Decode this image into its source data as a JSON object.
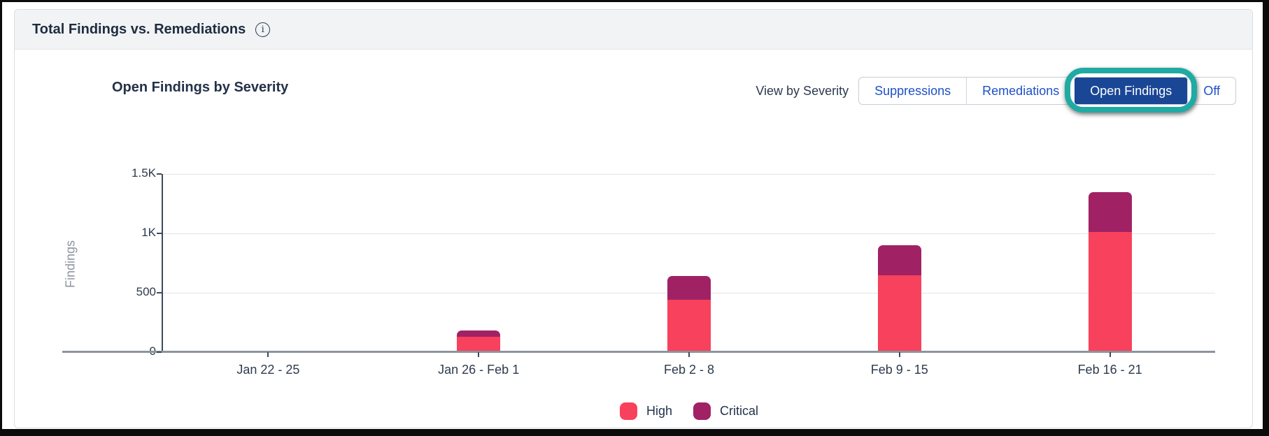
{
  "card": {
    "title": "Total Findings vs. Remediations",
    "info_icon_glyph": "i"
  },
  "panel": {
    "title": "Open Findings by Severity"
  },
  "controls": {
    "view_by_label": "View by Severity",
    "buttons": [
      {
        "label": "Suppressions",
        "selected": false,
        "highlighted": false
      },
      {
        "label": "Remediations",
        "selected": false,
        "highlighted": false
      },
      {
        "label": "Open Findings",
        "selected": true,
        "highlighted": true
      },
      {
        "label": "Off",
        "selected": false,
        "highlighted": false
      }
    ]
  },
  "chart_data": {
    "type": "bar",
    "stacked": true,
    "title": "Open Findings by Severity",
    "categories": [
      "Jan 22 - 25",
      "Jan 26 - Feb 1",
      "Feb 2 - 8",
      "Feb 9 - 15",
      "Feb 16 - 21"
    ],
    "series": [
      {
        "name": "High",
        "color": "#f8415c",
        "values": [
          0,
          130,
          440,
          650,
          1010
        ]
      },
      {
        "name": "Critical",
        "color": "#a12165",
        "values": [
          0,
          55,
          200,
          250,
          340
        ]
      }
    ],
    "totals": [
      0,
      185,
      640,
      900,
      1350
    ],
    "xlabel": "",
    "ylabel": "Findings",
    "ylim": [
      0,
      1500
    ],
    "yticks": [
      {
        "value": 0,
        "label": "0"
      },
      {
        "value": 500,
        "label": "500"
      },
      {
        "value": 1000,
        "label": "1K"
      },
      {
        "value": 1500,
        "label": "1.5K"
      }
    ],
    "grid": true,
    "legend_position": "bottom"
  },
  "colors": {
    "selected_button_bg": "#1a4696",
    "button_text_blue": "#1e50c8",
    "highlight_ring_teal": "#1faaa3",
    "high": "#f8415c",
    "critical": "#a12165",
    "header_bg": "#f1f3f5",
    "axis_dark": "#3d4a5a",
    "axis_gray": "#8d949c"
  }
}
